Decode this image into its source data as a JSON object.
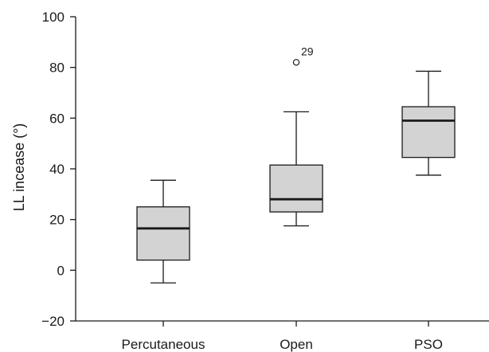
{
  "chart_data": {
    "type": "boxplot",
    "ylabel": "LL incease (°)",
    "xlabel": "",
    "ylim": [
      -20,
      100
    ],
    "yticks": [
      -20,
      0,
      20,
      40,
      60,
      80,
      100
    ],
    "grid": false,
    "box_fill": "#d3d3d3",
    "line_color": "#1a1a1a",
    "categories": [
      "Percutaneous",
      "Open",
      "PSO"
    ],
    "boxes": [
      {
        "category": "Percutaneous",
        "whisker_low": -5,
        "q1": 4,
        "median": 16.5,
        "q3": 25,
        "whisker_high": 35.5,
        "outliers": []
      },
      {
        "category": "Open",
        "whisker_low": 17.5,
        "q1": 23,
        "median": 28,
        "q3": 41.5,
        "whisker_high": 62.5,
        "outliers": [
          {
            "value": 82,
            "label": "29"
          }
        ]
      },
      {
        "category": "PSO",
        "whisker_low": 37.5,
        "q1": 44.5,
        "median": 59,
        "q3": 64.5,
        "whisker_high": 78.5,
        "outliers": []
      }
    ]
  }
}
